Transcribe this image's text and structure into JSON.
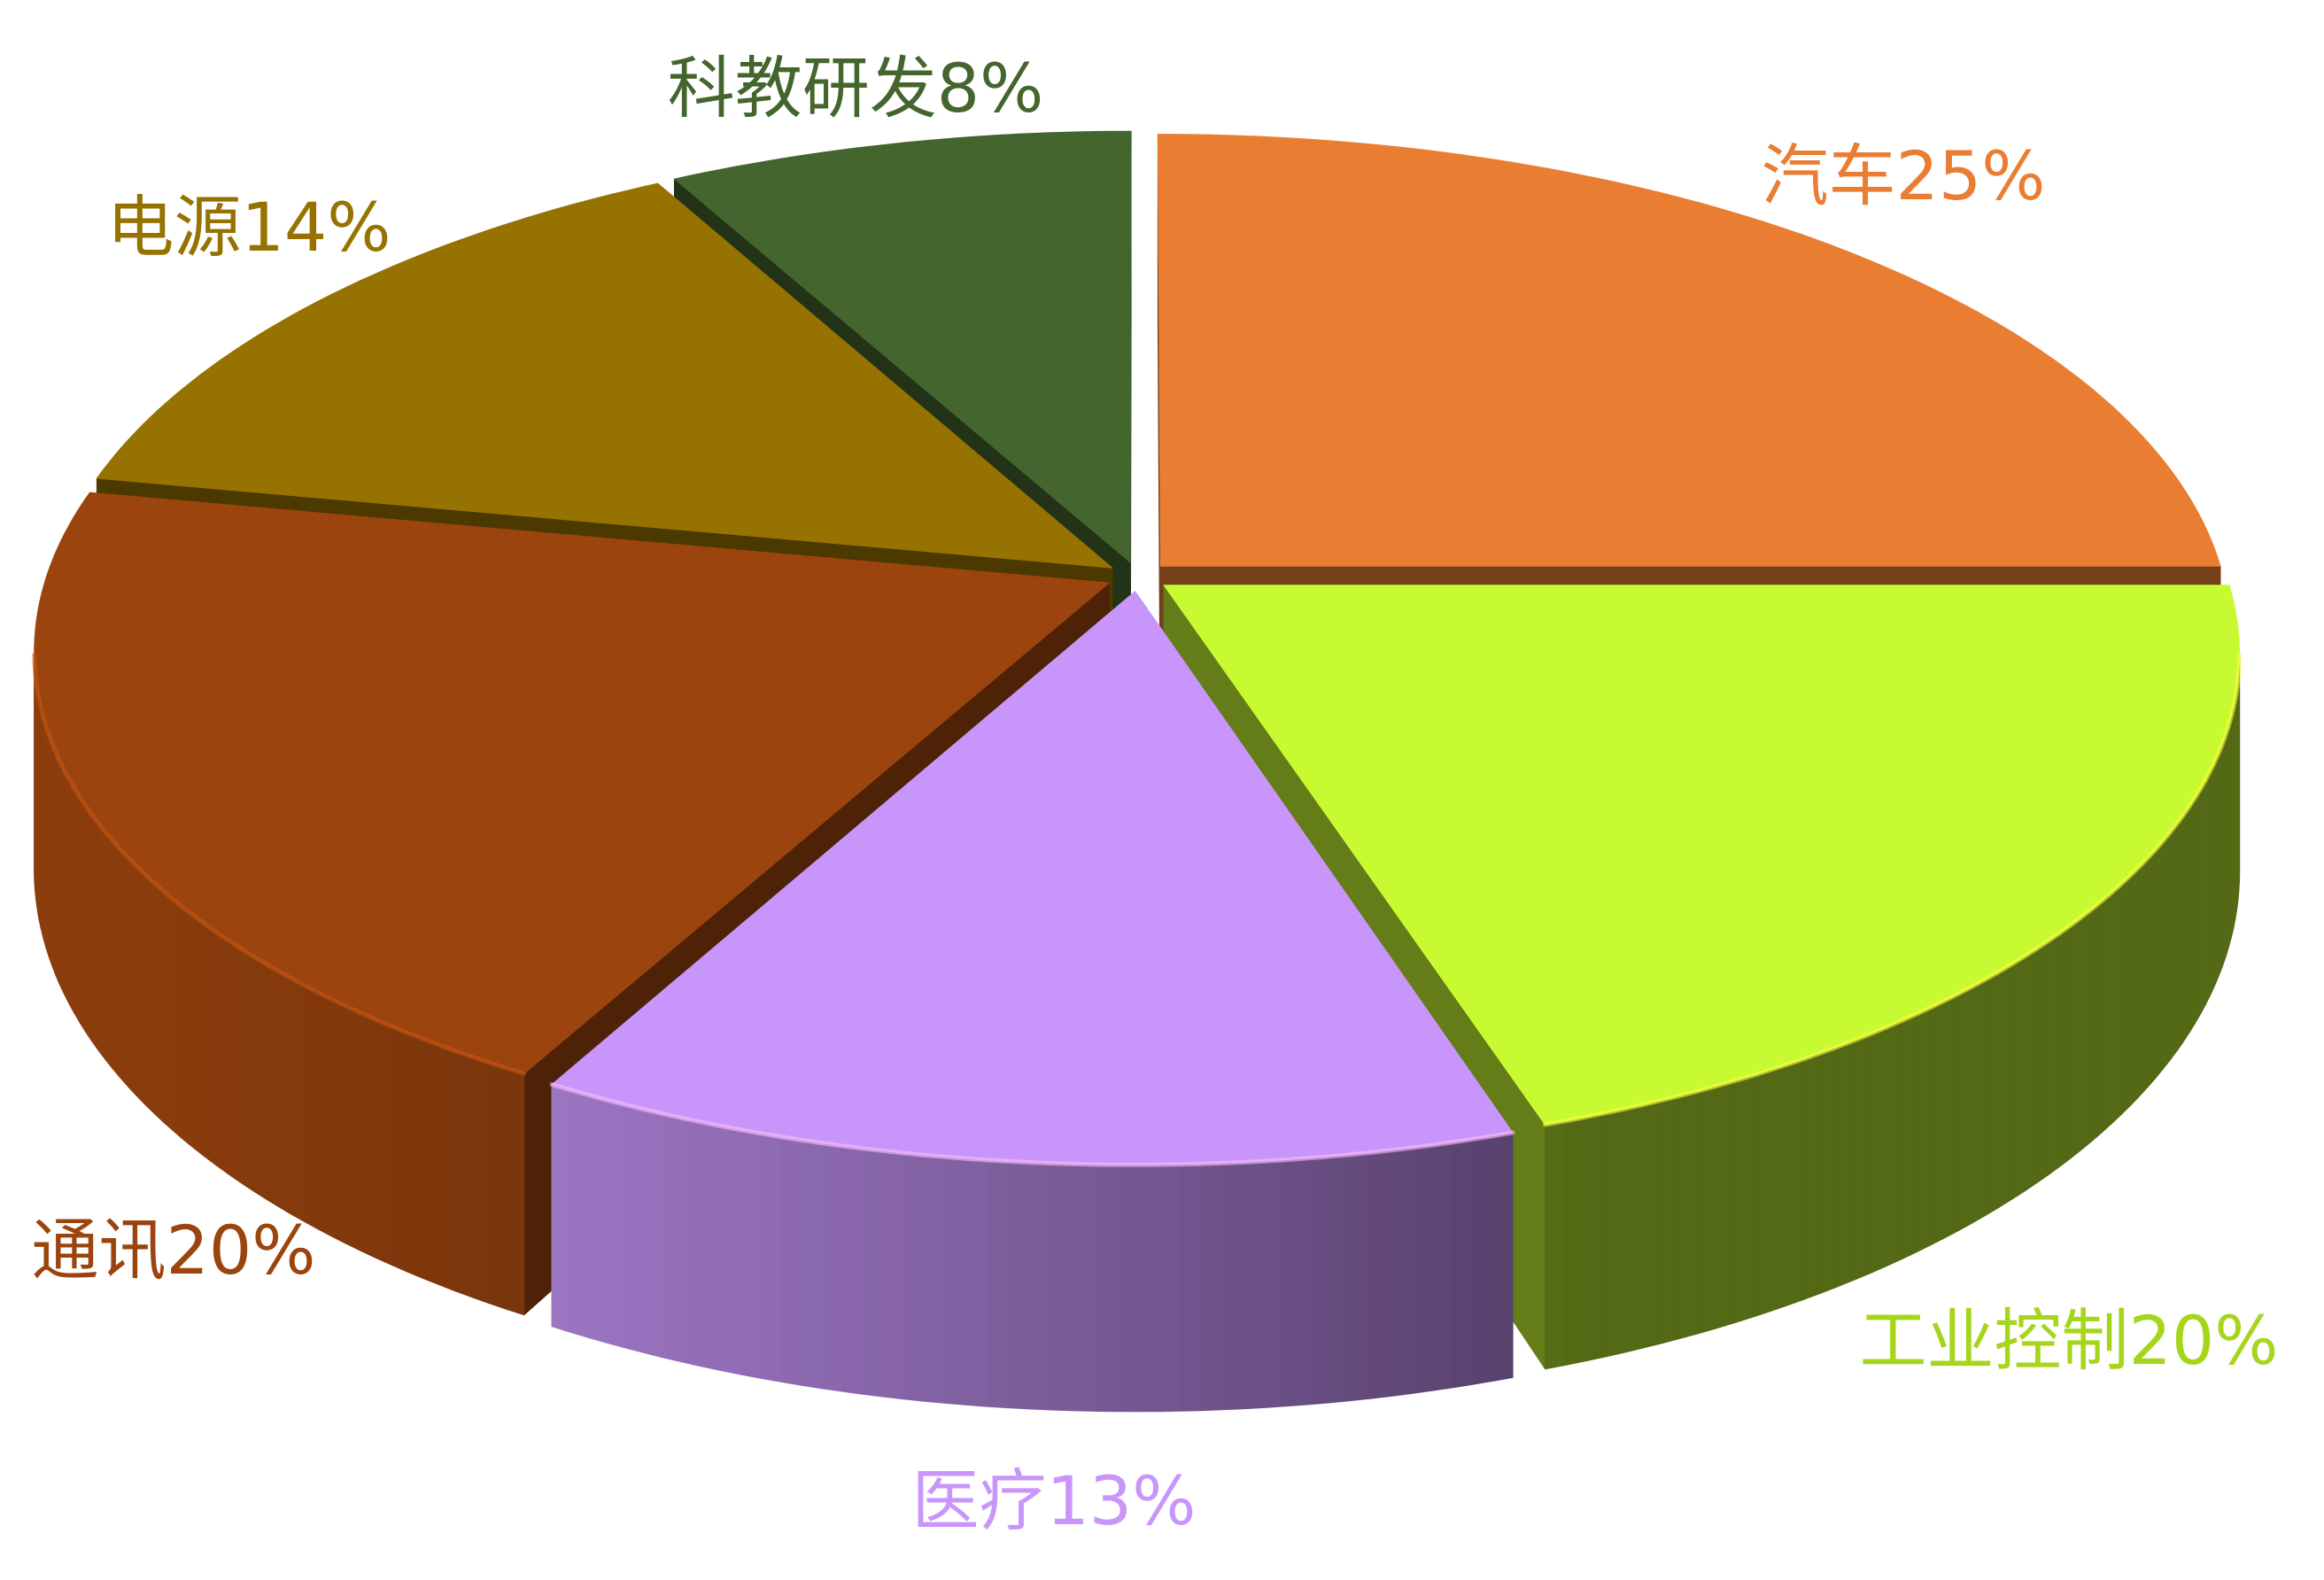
{
  "chart_data": {
    "type": "pie",
    "categories": [
      "汽车",
      "工业控制",
      "医疗",
      "通讯",
      "电源",
      "科教研发"
    ],
    "values": [
      25,
      20,
      13,
      20,
      14,
      8
    ],
    "unit": "%",
    "colors": [
      "#E97E33",
      "#C8FA32",
      "#C896FA",
      "#9B440E",
      "#967200",
      "#44652D"
    ],
    "label_colors": [
      "#E97E33",
      "#A6D61C",
      "#C896FA",
      "#9B440E",
      "#967200",
      "#44652D"
    ]
  }
}
